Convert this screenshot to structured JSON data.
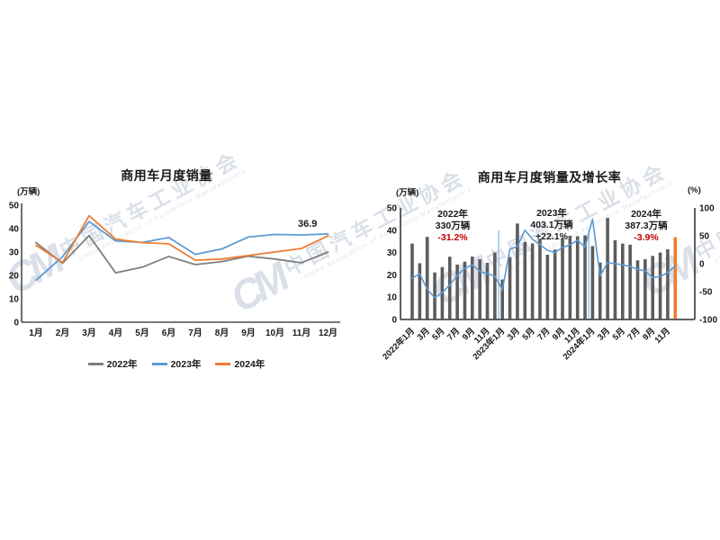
{
  "watermark": {
    "logo": "CM",
    "text": "中国汽车工业协会",
    "subtext": "China Association of Automobile Manufacturers",
    "color": "#b9c3d2"
  },
  "colors": {
    "blue": "#5B9BD5",
    "orange": "#ED7D31",
    "gray": "#7F7F7F",
    "bar_gray": "#5C5C5C",
    "separator_blue": "#9DC3E6",
    "red": "#C00000",
    "text_dark": "#1A1A1A",
    "axis": "#4D4D4D"
  },
  "left_chart": {
    "title": "商用车月度销量",
    "unit_label": "(万辆)",
    "end_label": "36.9"
  },
  "right_chart": {
    "title": "商用车月度销量及增长率",
    "unit_label_left": "(万辆)",
    "unit_label_right": "(%)",
    "annotations": [
      {
        "year": "2022年",
        "volume": "330万辆",
        "growth": "-31.2%",
        "growth_color": "#C00000"
      },
      {
        "year": "2023年",
        "volume": "403.1万辆",
        "growth": "+22.1%",
        "growth_color": "#1A1A1A"
      },
      {
        "year": "2024年",
        "volume": "387.3万辆",
        "growth": "-3.9%",
        "growth_color": "#C00000"
      }
    ]
  },
  "chart_data": [
    {
      "type": "line",
      "title": "商用车月度销量",
      "ylabel": "(万辆)",
      "ylim": [
        0,
        50
      ],
      "y_ticks": [
        0,
        10,
        20,
        30,
        40,
        50
      ],
      "grid": false,
      "legend_position": "bottom",
      "categories": [
        "1月",
        "2月",
        "3月",
        "4月",
        "5月",
        "6月",
        "7月",
        "8月",
        "9月",
        "10月",
        "11月",
        "12月"
      ],
      "series": [
        {
          "name": "2022年",
          "color": "#7F7F7F",
          "values": [
            34,
            25.2,
            37,
            21.1,
            23.5,
            28.1,
            24.6,
            25.9,
            28.2,
            27,
            25.4,
            30
          ]
        },
        {
          "name": "2023年",
          "color": "#5B9BD5",
          "values": [
            17.9,
            28,
            43,
            34.7,
            34.1,
            36.2,
            29,
            31.3,
            36.4,
            37.5,
            37.3,
            37.7
          ]
        },
        {
          "name": "2024年",
          "color": "#ED7D31",
          "values": [
            32.9,
            25.5,
            45.5,
            35.5,
            34,
            33.5,
            26.5,
            27,
            28.5,
            30,
            31.5,
            36.9
          ]
        }
      ],
      "point_label": {
        "series": "2024年",
        "category": "12月",
        "text": "36.9"
      }
    },
    {
      "type": "bar",
      "title": "商用车月度销量及增长率",
      "ylabel_left": "(万辆)",
      "ylabel_right": "(%)",
      "ylim_left": [
        0,
        50
      ],
      "ylim_right": [
        -100,
        100
      ],
      "y_ticks_left": [
        0,
        10,
        20,
        30,
        40,
        50
      ],
      "y_ticks_right": [
        -100,
        -50,
        0,
        50,
        100
      ],
      "categories": [
        "2022年1月",
        "2022年2月",
        "2022年3月",
        "2022年4月",
        "2022年5月",
        "2022年6月",
        "2022年7月",
        "2022年8月",
        "2022年9月",
        "2022年10月",
        "2022年11月",
        "2022年12月",
        "2023年1月",
        "2023年2月",
        "2023年3月",
        "2023年4月",
        "2023年5月",
        "2023年6月",
        "2023年7月",
        "2023年8月",
        "2023年9月",
        "2023年10月",
        "2023年11月",
        "2023年12月",
        "2024年1月",
        "2024年2月",
        "2024年3月",
        "2024年4月",
        "2024年5月",
        "2024年6月",
        "2024年7月",
        "2024年8月",
        "2024年9月",
        "2024年10月",
        "2024年11月",
        "2024年12月"
      ],
      "x_tick_labels": [
        "2022年1月",
        "3月",
        "5月",
        "7月",
        "9月",
        "11月",
        "2023年1月",
        "3月",
        "5月",
        "7月",
        "9月",
        "11月",
        "2024年1月",
        "3月",
        "5月",
        "7月",
        "9月",
        "11月"
      ],
      "bars": {
        "name": "月度销量",
        "unit": "万辆",
        "color": "#5C5C5C",
        "last_bar_color": "#ED7D31",
        "values": [
          34,
          25.2,
          37,
          21.1,
          23.5,
          28.1,
          24.6,
          25.9,
          28.2,
          27,
          25.4,
          30,
          17.9,
          28,
          43,
          34.7,
          34.1,
          36.2,
          29,
          31.3,
          36.4,
          37.5,
          37.3,
          37.7,
          32.9,
          25.5,
          45.5,
          35.5,
          34,
          33.5,
          26.5,
          27,
          28.5,
          30,
          31.5,
          36.9
        ]
      },
      "line": {
        "name": "增长率",
        "unit": "%",
        "color": "#5B9BD5",
        "values": [
          -26,
          -18,
          -46,
          -61,
          -52,
          -38,
          -21,
          -8,
          -2,
          -14,
          -18,
          -22,
          -47,
          26,
          31,
          60,
          44,
          34,
          24,
          20,
          29,
          34,
          42,
          30,
          80,
          -22,
          2,
          0,
          -2,
          -5,
          -10,
          -13,
          -25,
          -23,
          -16,
          -4
        ]
      },
      "year_separators_before": [
        "2023年1月",
        "2024年1月"
      ],
      "annotations": [
        {
          "year": "2022年",
          "volume": "330万辆",
          "growth": "-31.2%"
        },
        {
          "year": "2023年",
          "volume": "403.1万辆",
          "growth": "+22.1%"
        },
        {
          "year": "2024年",
          "volume": "387.3万辆",
          "growth": "-3.9%"
        }
      ]
    }
  ]
}
